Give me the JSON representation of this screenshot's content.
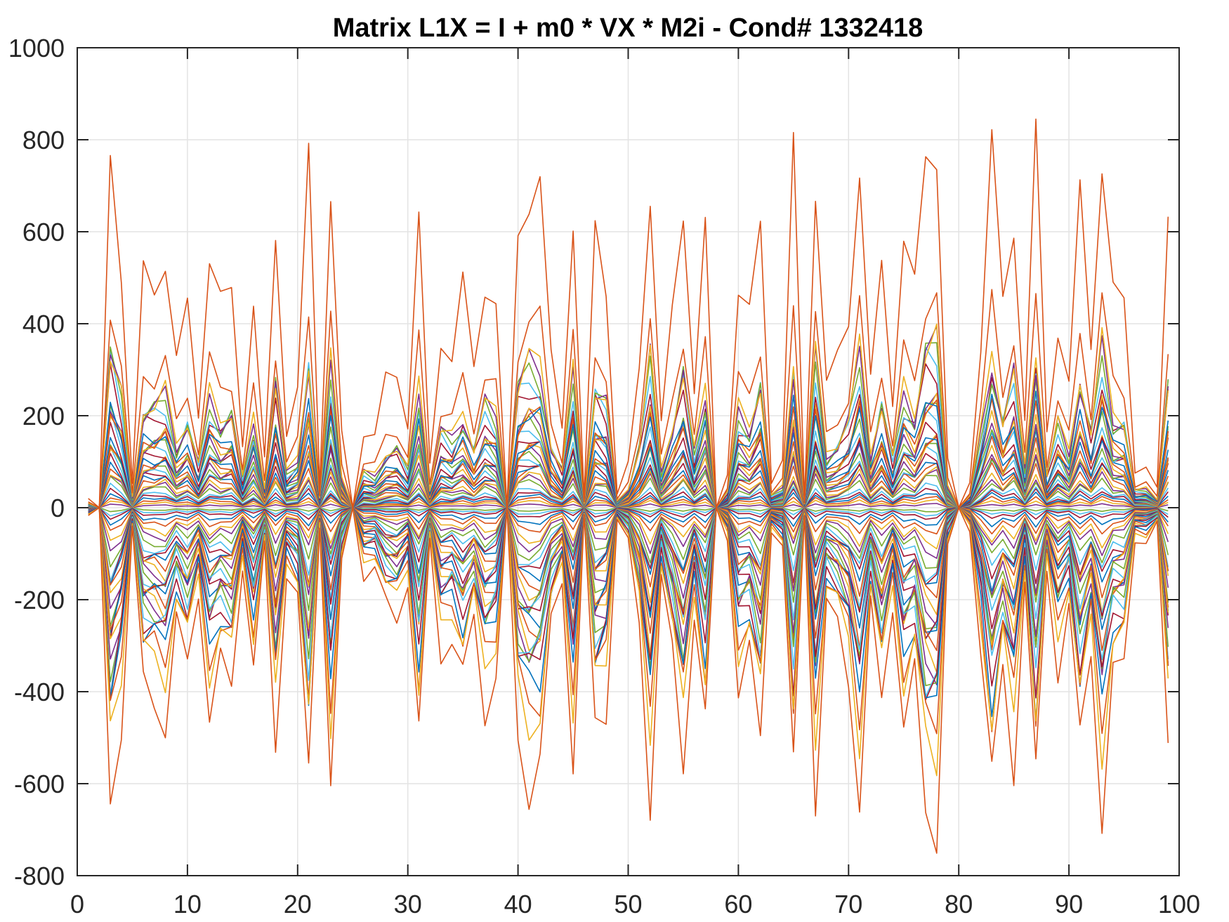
{
  "chart_data": {
    "type": "line",
    "title": "Matrix L1X = I + m0 * VX * M2i - Cond# 1332418",
    "xlabel": "",
    "ylabel": "",
    "xlim": [
      0,
      100
    ],
    "ylim": [
      -800,
      1000
    ],
    "xticks": [
      0,
      10,
      20,
      30,
      40,
      50,
      60,
      70,
      80,
      90,
      100
    ],
    "yticks": [
      -800,
      -600,
      -400,
      -200,
      0,
      200,
      400,
      600,
      800,
      1000
    ],
    "grid": true,
    "legend": "none",
    "x": [
      1,
      2,
      3,
      4,
      5,
      6,
      7,
      8,
      9,
      10,
      11,
      12,
      13,
      14,
      15,
      16,
      17,
      18,
      19,
      20,
      21,
      22,
      23,
      24,
      25,
      26,
      27,
      28,
      29,
      30,
      31,
      32,
      33,
      34,
      35,
      36,
      37,
      38,
      39,
      40,
      41,
      42,
      43,
      44,
      45,
      46,
      47,
      48,
      49,
      50,
      51,
      52,
      53,
      54,
      55,
      56,
      57,
      58,
      59,
      60,
      61,
      62,
      63,
      64,
      65,
      66,
      67,
      68,
      69,
      70,
      71,
      72,
      73,
      74,
      75,
      76,
      77,
      78,
      79,
      80,
      81,
      82,
      83,
      84,
      85,
      86,
      87,
      88,
      89,
      90,
      91,
      92,
      93,
      94,
      95,
      96,
      97,
      98,
      99
    ],
    "upper_envelope": [
      20,
      0,
      790,
      550,
      50,
      490,
      505,
      555,
      300,
      435,
      220,
      540,
      420,
      485,
      150,
      420,
      100,
      625,
      170,
      240,
      745,
      50,
      690,
      150,
      0,
      175,
      155,
      265,
      300,
      190,
      595,
      90,
      385,
      335,
      460,
      300,
      520,
      440,
      0,
      615,
      715,
      675,
      315,
      190,
      645,
      20,
      600,
      520,
      30,
      90,
      310,
      740,
      180,
      400,
      675,
      270,
      575,
      0,
      80,
      475,
      395,
      625,
      60,
      100,
      735,
      20,
      735,
      255,
      320,
      440,
      750,
      260,
      530,
      250,
      570,
      455,
      800,
      820,
      100,
      0,
      60,
      360,
      740,
      445,
      665,
      190,
      755,
      170,
      415,
      260,
      650,
      375,
      785,
      445,
      435,
      85,
      90,
      40,
      640
    ],
    "series_scales": [
      1.0,
      0.58,
      0.45,
      0.43,
      0.41,
      0.39,
      0.37,
      0.3,
      0.29,
      0.28,
      0.27,
      0.26,
      0.24,
      0.22,
      0.2,
      0.19,
      0.18,
      0.17,
      0.16,
      0.15,
      0.14,
      0.13,
      0.12,
      0.1,
      0.09,
      0.08,
      0.06,
      0.05,
      0.04,
      0.03,
      0.02,
      0.01,
      -0.01,
      -0.02,
      -0.03,
      -0.05,
      -0.07,
      -0.1,
      -0.12,
      -0.15,
      -0.18,
      -0.2,
      -0.22,
      -0.24,
      -0.26,
      -0.28,
      -0.3,
      -0.32,
      -0.34,
      -0.36,
      -0.38,
      -0.4,
      -0.42,
      -0.44,
      -0.46,
      -0.5,
      -0.55,
      -0.6,
      -0.65,
      -0.82
    ],
    "colors": [
      "#0072BD",
      "#D95319",
      "#EDB120",
      "#7E2F8E",
      "#77AC30",
      "#4DBEEE",
      "#A2142F"
    ]
  }
}
